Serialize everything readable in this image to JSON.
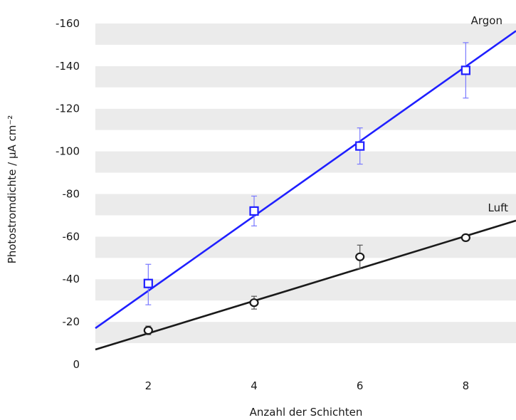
{
  "chart_data": {
    "type": "scatter",
    "xlabel": "Anzahl der Schichten",
    "ylabel": "Photostromdichte / µA cm⁻²",
    "xlim": [
      1,
      8.95
    ],
    "ylim": [
      0,
      -167
    ],
    "x_ticks": [
      "2",
      "4",
      "6",
      "8"
    ],
    "y_ticks": [
      "0",
      "-20",
      "-40",
      "-60",
      "-80",
      "-100",
      "-120",
      "-140",
      "-160"
    ],
    "grid": "horizontal bands",
    "legend": "none",
    "band_color": "#ebebeb",
    "series": [
      {
        "name": "Argon",
        "color": "#1f1fff",
        "marker": "square",
        "points": [
          {
            "x": 2,
            "y": -38,
            "err_low": -28,
            "err_high": -47
          },
          {
            "x": 4,
            "y": -72,
            "err_low": -65,
            "err_high": -79
          },
          {
            "x": 6,
            "y": -102.5,
            "err_low": -94,
            "err_high": -111
          },
          {
            "x": 8,
            "y": -138,
            "err_low": -125,
            "err_high": -151
          }
        ],
        "fit": {
          "x": [
            1,
            8.95
          ],
          "y": [
            -17,
            -156.5
          ]
        }
      },
      {
        "name": "Luft",
        "color": "#1a1a1a",
        "marker": "circle",
        "points": [
          {
            "x": 2,
            "y": -16,
            "err_low": -14,
            "err_high": -18
          },
          {
            "x": 4,
            "y": -29,
            "err_low": -26,
            "err_high": -32
          },
          {
            "x": 6,
            "y": -50.5,
            "err_low": -45,
            "err_high": -56
          },
          {
            "x": 8,
            "y": -59.5,
            "err_low": -58,
            "err_high": -61
          }
        ],
        "fit": {
          "x": [
            1,
            8.95
          ],
          "y": [
            -7,
            -67.5
          ]
        }
      }
    ]
  }
}
